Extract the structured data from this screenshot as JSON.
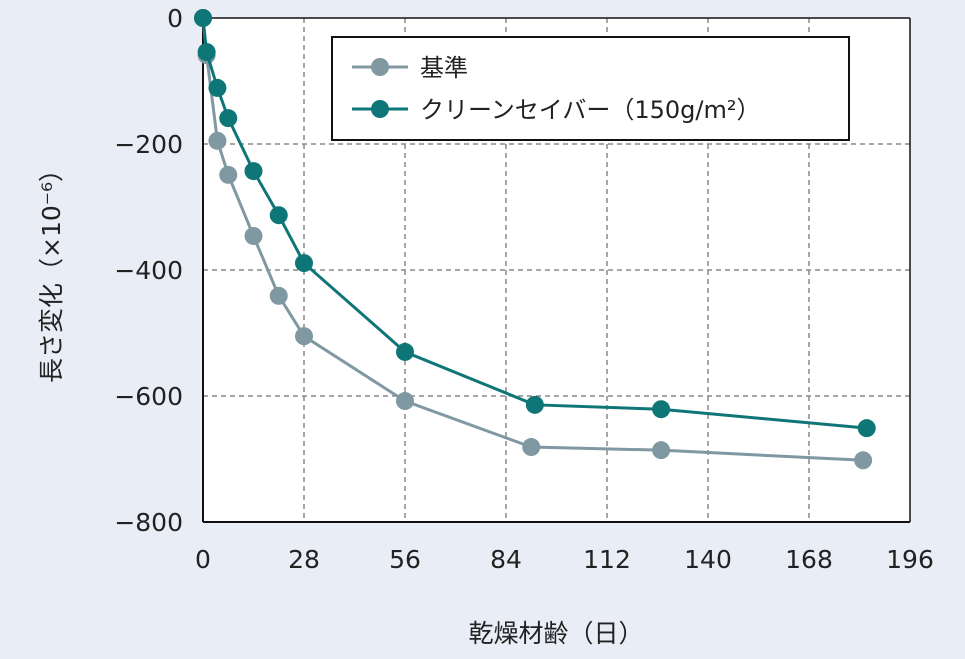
{
  "chart_data": {
    "type": "line",
    "title": "",
    "xlabel": "乾燥材齢（日）",
    "ylabel": "長さ変化（×10⁻⁶）",
    "xlim": [
      0,
      196
    ],
    "ylim": [
      -800,
      0
    ],
    "xticks": [
      "0",
      "28",
      "56",
      "84",
      "112",
      "140",
      "168",
      "196"
    ],
    "yticks": [
      "0",
      "−200",
      "−400",
      "−600",
      "−800"
    ],
    "grid": true,
    "legend_position": "top-right",
    "series": [
      {
        "name": "基準",
        "color": "#7f98a2",
        "x": [
          0,
          1,
          4,
          7,
          14,
          21,
          28,
          56,
          91,
          127,
          183
        ],
        "y": [
          0,
          -59,
          -195,
          -249,
          -346,
          -441,
          -505,
          -608,
          -681,
          -686,
          -702
        ]
      },
      {
        "name": "クリーンセイバー（150g/m²）",
        "color": "#0f7678",
        "x": [
          0,
          1,
          4,
          7,
          14,
          21,
          28,
          56,
          92,
          127,
          184
        ],
        "y": [
          0,
          -54,
          -111,
          -159,
          -243,
          -313,
          -389,
          -530,
          -614,
          -621,
          -651
        ]
      }
    ]
  }
}
